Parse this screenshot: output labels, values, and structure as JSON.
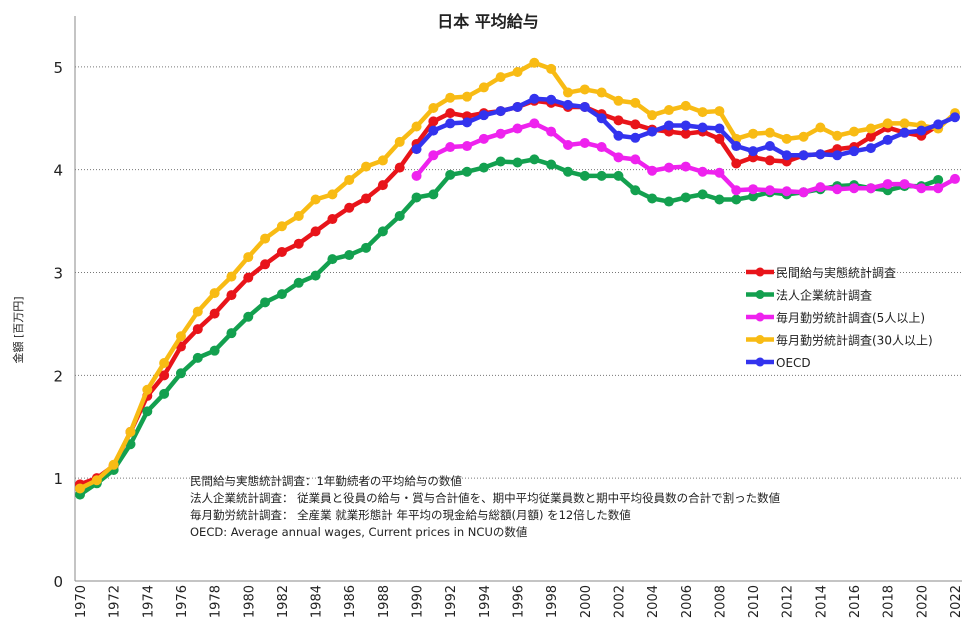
{
  "chart_data": {
    "type": "line",
    "title": "日本 平均給与",
    "xlabel": "",
    "ylabel": "金額 [百万円]",
    "ylim": [
      0,
      5.3
    ],
    "xlim": [
      1970,
      2022
    ],
    "yticks": [
      "0",
      "1",
      "2",
      "3",
      "4",
      "5"
    ],
    "xticks": [
      "1970",
      "1972",
      "1974",
      "1976",
      "1978",
      "1980",
      "1982",
      "1984",
      "1986",
      "1988",
      "1990",
      "1992",
      "1994",
      "1996",
      "1998",
      "2000",
      "2002",
      "2004",
      "2006",
      "2008",
      "2010",
      "2012",
      "2014",
      "2016",
      "2018",
      "2020",
      "2022"
    ],
    "grid": "horizontal-dotted",
    "legend_position": "right",
    "series": [
      {
        "name": "民間給与実態統計調査",
        "color": "#e8141a",
        "start": 1970,
        "values": [
          0.94,
          1.0,
          1.12,
          1.45,
          1.8,
          2.0,
          2.28,
          2.45,
          2.6,
          2.78,
          2.95,
          3.08,
          3.2,
          3.28,
          3.4,
          3.52,
          3.63,
          3.72,
          3.85,
          4.02,
          4.25,
          4.47,
          4.55,
          4.52,
          4.55,
          4.57,
          4.61,
          4.67,
          4.65,
          4.61,
          4.61,
          4.54,
          4.48,
          4.44,
          4.39,
          4.37,
          4.35,
          4.37,
          4.3,
          4.06,
          4.12,
          4.09,
          4.08,
          4.14,
          4.15,
          4.2,
          4.22,
          4.32,
          4.41,
          4.36,
          4.33,
          4.43
        ]
      },
      {
        "name": "法人企業統計調査",
        "color": "#13a04f",
        "start": 1970,
        "values": [
          0.84,
          0.95,
          1.08,
          1.33,
          1.65,
          1.82,
          2.02,
          2.17,
          2.24,
          2.41,
          2.57,
          2.71,
          2.79,
          2.9,
          2.97,
          3.13,
          3.17,
          3.24,
          3.4,
          3.55,
          3.73,
          3.76,
          3.95,
          3.98,
          4.02,
          4.08,
          4.07,
          4.1,
          4.05,
          3.98,
          3.94,
          3.94,
          3.94,
          3.8,
          3.72,
          3.69,
          3.73,
          3.76,
          3.71,
          3.71,
          3.74,
          3.78,
          3.76,
          3.78,
          3.81,
          3.84,
          3.85,
          3.82,
          3.8,
          3.84,
          3.84,
          3.9
        ]
      },
      {
        "name": "毎月勤労統計調査(5人以上)",
        "color": "#ee22ee",
        "start": 1990,
        "values": [
          3.94,
          4.14,
          4.22,
          4.23,
          4.3,
          4.35,
          4.4,
          4.45,
          4.37,
          4.24,
          4.26,
          4.22,
          4.12,
          4.1,
          3.99,
          4.02,
          4.03,
          3.98,
          3.97,
          3.8,
          3.81,
          3.8,
          3.79,
          3.78,
          3.83,
          3.81,
          3.82,
          3.82,
          3.86,
          3.86,
          3.82,
          3.82,
          3.91
        ]
      },
      {
        "name": "毎月勤労統計調査(30人以上)",
        "color": "#f8bb14",
        "start": 1970,
        "values": [
          0.9,
          0.98,
          1.13,
          1.45,
          1.86,
          2.12,
          2.38,
          2.62,
          2.8,
          2.96,
          3.15,
          3.33,
          3.45,
          3.55,
          3.71,
          3.76,
          3.9,
          4.03,
          4.09,
          4.27,
          4.42,
          4.6,
          4.7,
          4.71,
          4.8,
          4.9,
          4.95,
          5.04,
          4.98,
          4.75,
          4.78,
          4.75,
          4.67,
          4.65,
          4.53,
          4.58,
          4.62,
          4.56,
          4.57,
          4.3,
          4.35,
          4.36,
          4.3,
          4.32,
          4.41,
          4.33,
          4.37,
          4.4,
          4.45,
          4.45,
          4.43,
          4.4,
          4.55
        ]
      },
      {
        "name": "OECD",
        "color": "#3333ee",
        "start": 1990,
        "values": [
          4.2,
          4.38,
          4.45,
          4.46,
          4.53,
          4.57,
          4.61,
          4.69,
          4.68,
          4.63,
          4.61,
          4.5,
          4.33,
          4.31,
          4.37,
          4.43,
          4.43,
          4.41,
          4.4,
          4.23,
          4.18,
          4.23,
          4.14,
          4.14,
          4.15,
          4.14,
          4.18,
          4.21,
          4.29,
          4.36,
          4.38,
          4.44,
          4.51
        ]
      }
    ],
    "annotations": [
      "民間給与実態統計調査：1年勤続者の平均給与の数値",
      "法人企業統計調査： 従業員と役員の給与・賞与合計値を、期中平均従業員数と期中平均役員数の合計で割った数値",
      "毎月勤労統計調査： 全産業 就業形態計 年平均の現金給与総額(月額) を12倍した数値",
      "OECD: Average annual wages, Current prices in NCUの数値"
    ]
  }
}
